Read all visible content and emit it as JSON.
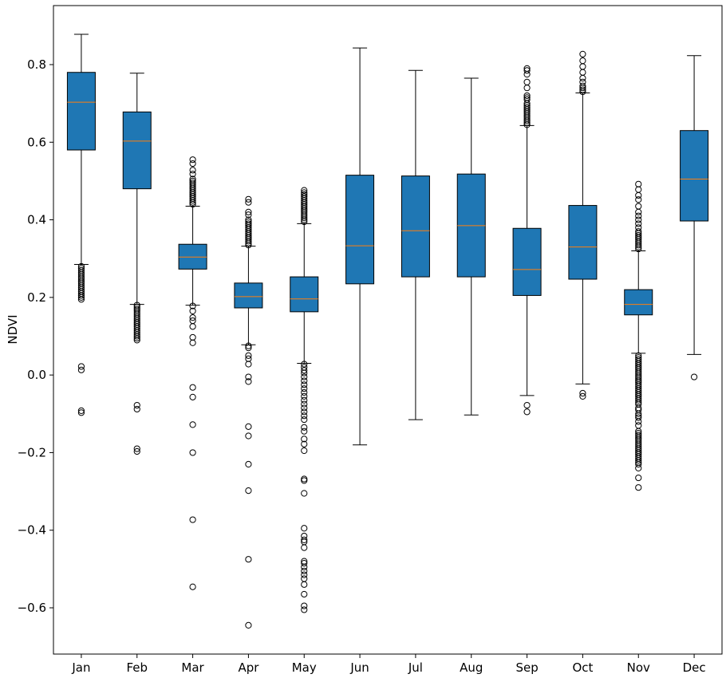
{
  "chart_data": {
    "type": "box",
    "title": "",
    "xlabel": "",
    "ylabel": "NDVI",
    "ylim": [
      -0.72,
      0.95
    ],
    "yticks": [
      -0.6,
      -0.4,
      -0.2,
      0.0,
      0.2,
      0.4,
      0.6,
      0.8
    ],
    "ytick_labels": [
      "−0.6",
      "−0.4",
      "−0.2",
      "0.0",
      "0.2",
      "0.4",
      "0.6",
      "0.8"
    ],
    "grid": false,
    "colors": {
      "box_fill": "#1f77b4",
      "median": "#ff7f0e",
      "edge": "#000000"
    },
    "categories": [
      "Jan",
      "Feb",
      "Mar",
      "Apr",
      "May",
      "Jun",
      "Jul",
      "Aug",
      "Sep",
      "Oct",
      "Nov",
      "Dec"
    ],
    "boxes": [
      {
        "label": "Jan",
        "whisker_low": 0.285,
        "q1": 0.58,
        "median": 0.703,
        "q3": 0.78,
        "whisker_high": 0.878,
        "outliers": [
          0.28,
          0.275,
          0.27,
          0.265,
          0.26,
          0.255,
          0.25,
          0.245,
          0.24,
          0.235,
          0.23,
          0.225,
          0.22,
          0.215,
          0.21,
          0.205,
          0.2,
          0.195,
          0.022,
          0.013,
          -0.092,
          -0.097
        ]
      },
      {
        "label": "Feb",
        "whisker_low": 0.182,
        "q1": 0.48,
        "median": 0.603,
        "q3": 0.678,
        "whisker_high": 0.778,
        "outliers": [
          0.18,
          0.175,
          0.17,
          0.165,
          0.16,
          0.155,
          0.15,
          0.145,
          0.14,
          0.135,
          0.13,
          0.125,
          0.12,
          0.115,
          0.11,
          0.105,
          0.1,
          0.095,
          0.09,
          -0.078,
          -0.088,
          -0.19,
          -0.197
        ]
      },
      {
        "label": "Mar",
        "whisker_low": 0.18,
        "q1": 0.273,
        "median": 0.304,
        "q3": 0.337,
        "whisker_high": 0.435,
        "outliers": [
          0.555,
          0.545,
          0.528,
          0.518,
          0.505,
          0.5,
          0.495,
          0.49,
          0.485,
          0.48,
          0.475,
          0.47,
          0.465,
          0.46,
          0.455,
          0.45,
          0.445,
          0.44,
          0.178,
          0.165,
          0.148,
          0.14,
          0.125,
          0.097,
          0.083,
          -0.032,
          -0.057,
          -0.128,
          -0.2,
          -0.373,
          -0.546
        ]
      },
      {
        "label": "Apr",
        "whisker_low": 0.078,
        "q1": 0.173,
        "median": 0.202,
        "q3": 0.237,
        "whisker_high": 0.332,
        "outliers": [
          0.453,
          0.445,
          0.42,
          0.413,
          0.4,
          0.395,
          0.39,
          0.385,
          0.38,
          0.375,
          0.37,
          0.365,
          0.36,
          0.355,
          0.35,
          0.345,
          0.34,
          0.335,
          0.075,
          0.07,
          0.05,
          0.042,
          0.028,
          -0.005,
          -0.017,
          -0.133,
          -0.157,
          -0.23,
          -0.298,
          -0.475,
          -0.645
        ]
      },
      {
        "label": "May",
        "whisker_low": 0.03,
        "q1": 0.163,
        "median": 0.196,
        "q3": 0.253,
        "whisker_high": 0.39,
        "outliers": [
          0.476,
          0.47,
          0.465,
          0.46,
          0.455,
          0.45,
          0.445,
          0.44,
          0.435,
          0.43,
          0.425,
          0.42,
          0.415,
          0.41,
          0.405,
          0.4,
          0.395,
          0.028,
          0.02,
          0.012,
          0.005,
          -0.005,
          -0.015,
          -0.025,
          -0.035,
          -0.045,
          -0.055,
          -0.065,
          -0.075,
          -0.085,
          -0.095,
          -0.105,
          -0.115,
          -0.135,
          -0.145,
          -0.165,
          -0.178,
          -0.195,
          -0.268,
          -0.272,
          -0.305,
          -0.395,
          -0.415,
          -0.425,
          -0.43,
          -0.445,
          -0.48,
          -0.485,
          -0.495,
          -0.505,
          -0.515,
          -0.525,
          -0.54,
          -0.565,
          -0.595,
          -0.605
        ]
      },
      {
        "label": "Jun",
        "whisker_low": -0.18,
        "q1": 0.235,
        "median": 0.333,
        "q3": 0.515,
        "whisker_high": 0.843,
        "outliers": []
      },
      {
        "label": "Jul",
        "whisker_low": -0.115,
        "q1": 0.253,
        "median": 0.372,
        "q3": 0.513,
        "whisker_high": 0.785,
        "outliers": []
      },
      {
        "label": "Aug",
        "whisker_low": -0.103,
        "q1": 0.253,
        "median": 0.385,
        "q3": 0.518,
        "whisker_high": 0.765,
        "outliers": []
      },
      {
        "label": "Sep",
        "whisker_low": -0.053,
        "q1": 0.205,
        "median": 0.272,
        "q3": 0.378,
        "whisker_high": 0.643,
        "outliers": [
          0.79,
          0.785,
          0.775,
          0.755,
          0.74,
          0.72,
          0.715,
          0.71,
          0.7,
          0.695,
          0.69,
          0.685,
          0.68,
          0.675,
          0.67,
          0.665,
          0.66,
          0.655,
          0.65,
          0.645,
          -0.078,
          -0.095
        ]
      },
      {
        "label": "Oct",
        "whisker_low": -0.023,
        "q1": 0.247,
        "median": 0.33,
        "q3": 0.437,
        "whisker_high": 0.727,
        "outliers": [
          0.827,
          0.81,
          0.795,
          0.78,
          0.765,
          0.755,
          0.745,
          0.74,
          0.735,
          0.73,
          -0.047,
          -0.055
        ]
      },
      {
        "label": "Nov",
        "whisker_low": 0.056,
        "q1": 0.155,
        "median": 0.182,
        "q3": 0.22,
        "whisker_high": 0.32,
        "outliers": [
          0.492,
          0.478,
          0.463,
          0.452,
          0.435,
          0.42,
          0.41,
          0.4,
          0.39,
          0.38,
          0.37,
          0.365,
          0.36,
          0.355,
          0.35,
          0.345,
          0.34,
          0.335,
          0.33,
          0.325,
          0.05,
          0.045,
          0.04,
          0.035,
          0.03,
          0.025,
          0.02,
          0.015,
          0.01,
          0.005,
          0.0,
          -0.005,
          -0.01,
          -0.015,
          -0.02,
          -0.025,
          -0.03,
          -0.035,
          -0.04,
          -0.045,
          -0.05,
          -0.055,
          -0.06,
          -0.065,
          -0.07,
          -0.075,
          -0.085,
          -0.09,
          -0.1,
          -0.105,
          -0.11,
          -0.12,
          -0.13,
          -0.145,
          -0.15,
          -0.155,
          -0.16,
          -0.165,
          -0.17,
          -0.175,
          -0.18,
          -0.185,
          -0.19,
          -0.195,
          -0.2,
          -0.205,
          -0.21,
          -0.215,
          -0.22,
          -0.225,
          -0.23,
          -0.24,
          -0.265,
          -0.29
        ]
      },
      {
        "label": "Dec",
        "whisker_low": 0.053,
        "q1": 0.397,
        "median": 0.505,
        "q3": 0.63,
        "whisker_high": 0.823,
        "outliers": [
          -0.005
        ]
      }
    ]
  }
}
